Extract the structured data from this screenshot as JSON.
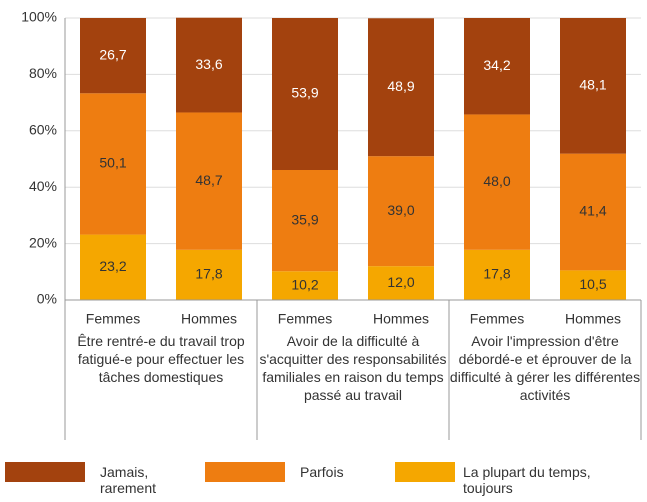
{
  "chart_data": {
    "type": "stacked_bar",
    "categories": [
      "Femmes",
      "Hommes",
      "Femmes",
      "Hommes",
      "Femmes",
      "Hommes"
    ],
    "groups": [
      "Être rentré-e du travail trop fatigué-e pour effectuer les tâches domestiques",
      "Avoir de la difficulté à s'acquitter des responsabilités familiales en raison du temps passé au travail",
      "Avoir l'impression d'être débordé-e et éprouver de la difficulté à gérer les différentes activités"
    ],
    "series": [
      {
        "name": "La plupart du temps, toujours",
        "color": "#f5a700",
        "values": [
          23.2,
          17.8,
          10.2,
          12.0,
          17.8,
          10.5
        ],
        "value_labels": [
          "23,2",
          "17,8",
          "10,2",
          "12,0",
          "17,8",
          "10,5"
        ]
      },
      {
        "name": "Parfois",
        "color": "#ee7d11",
        "values": [
          50.1,
          48.7,
          35.9,
          39.0,
          48.0,
          41.4
        ],
        "value_labels": [
          "50,1",
          "48,7",
          "35,9",
          "39,0",
          "48,0",
          "41,4"
        ]
      },
      {
        "name": "Jamais, rarement",
        "color": "#a3420e",
        "values": [
          26.7,
          33.6,
          53.9,
          48.9,
          34.2,
          48.1
        ],
        "value_labels": [
          "26,7",
          "33,6",
          "53,9",
          "48,9",
          "34,2",
          "48,1"
        ]
      }
    ],
    "ylim": [
      0,
      100
    ],
    "yticks": [
      {
        "value": 0,
        "label": "0%"
      },
      {
        "value": 20,
        "label": "20%"
      },
      {
        "value": 40,
        "label": "40%"
      },
      {
        "value": 60,
        "label": "60%"
      },
      {
        "value": 80,
        "label": "80%"
      },
      {
        "value": 100,
        "label": "100%"
      }
    ],
    "grid": true
  }
}
